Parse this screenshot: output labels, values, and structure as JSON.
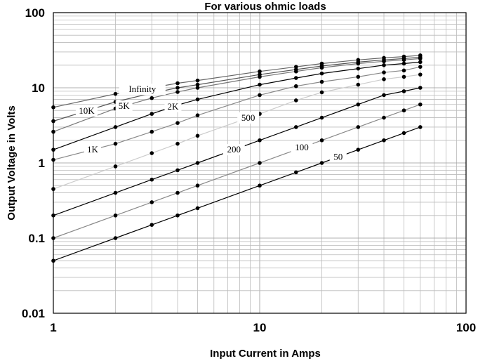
{
  "chart_data": {
    "type": "line",
    "title": "For various ohmic loads",
    "xlabel": "Input Current in Amps",
    "ylabel": "Output Voltage in Volts",
    "x_scale": "log",
    "y_scale": "log",
    "xlim": [
      1,
      100
    ],
    "ylim": [
      0.01,
      100
    ],
    "x_tick_labels": [
      "1",
      "10",
      "100"
    ],
    "y_tick_labels": [
      "0.01",
      "0.1",
      "1",
      "10",
      "100"
    ],
    "grid": true,
    "x": [
      1,
      2,
      3,
      4,
      5,
      10,
      15,
      20,
      30,
      40,
      50,
      60
    ],
    "series": [
      {
        "name": "Infinity",
        "color": "#666666",
        "values": [
          5.5,
          8.3,
          10,
          11.5,
          12.5,
          16.5,
          19,
          21,
          23.5,
          25,
          26,
          27
        ]
      },
      {
        "name": "10K",
        "color": "#555555",
        "values": [
          3.6,
          6.5,
          8.5,
          10,
          11,
          15,
          17.5,
          19.5,
          22,
          23.5,
          24.5,
          25.5
        ]
      },
      {
        "name": "5K",
        "color": "#777777",
        "values": [
          2.6,
          5.3,
          7.3,
          8.8,
          10,
          14,
          16.5,
          18.5,
          21,
          22.5,
          23.5,
          24.5
        ]
      },
      {
        "name": "2K",
        "color": "#000000",
        "values": [
          1.5,
          3,
          4.5,
          5.9,
          7,
          11,
          13.5,
          15.5,
          18,
          20,
          21,
          22
        ]
      },
      {
        "name": "1K",
        "color": "#888888",
        "values": [
          1.1,
          1.8,
          2.6,
          3.4,
          4.3,
          8,
          10.5,
          12,
          14,
          16,
          17,
          19
        ]
      },
      {
        "name": "500",
        "color": "#cccccc",
        "values": [
          0.45,
          0.9,
          1.35,
          1.8,
          2.3,
          4.5,
          6.8,
          8.7,
          11,
          13,
          14,
          15
        ]
      },
      {
        "name": "200",
        "color": "#000000",
        "values": [
          0.2,
          0.4,
          0.6,
          0.8,
          1,
          2,
          3,
          4,
          6,
          8,
          9,
          10
        ]
      },
      {
        "name": "100",
        "color": "#888888",
        "values": [
          0.1,
          0.2,
          0.3,
          0.4,
          0.5,
          1,
          1.5,
          2,
          3,
          4,
          5,
          6
        ]
      },
      {
        "name": "50",
        "color": "#000000",
        "values": [
          0.05,
          0.1,
          0.15,
          0.2,
          0.25,
          0.5,
          0.75,
          1,
          1.5,
          2,
          2.5,
          3
        ]
      }
    ]
  }
}
